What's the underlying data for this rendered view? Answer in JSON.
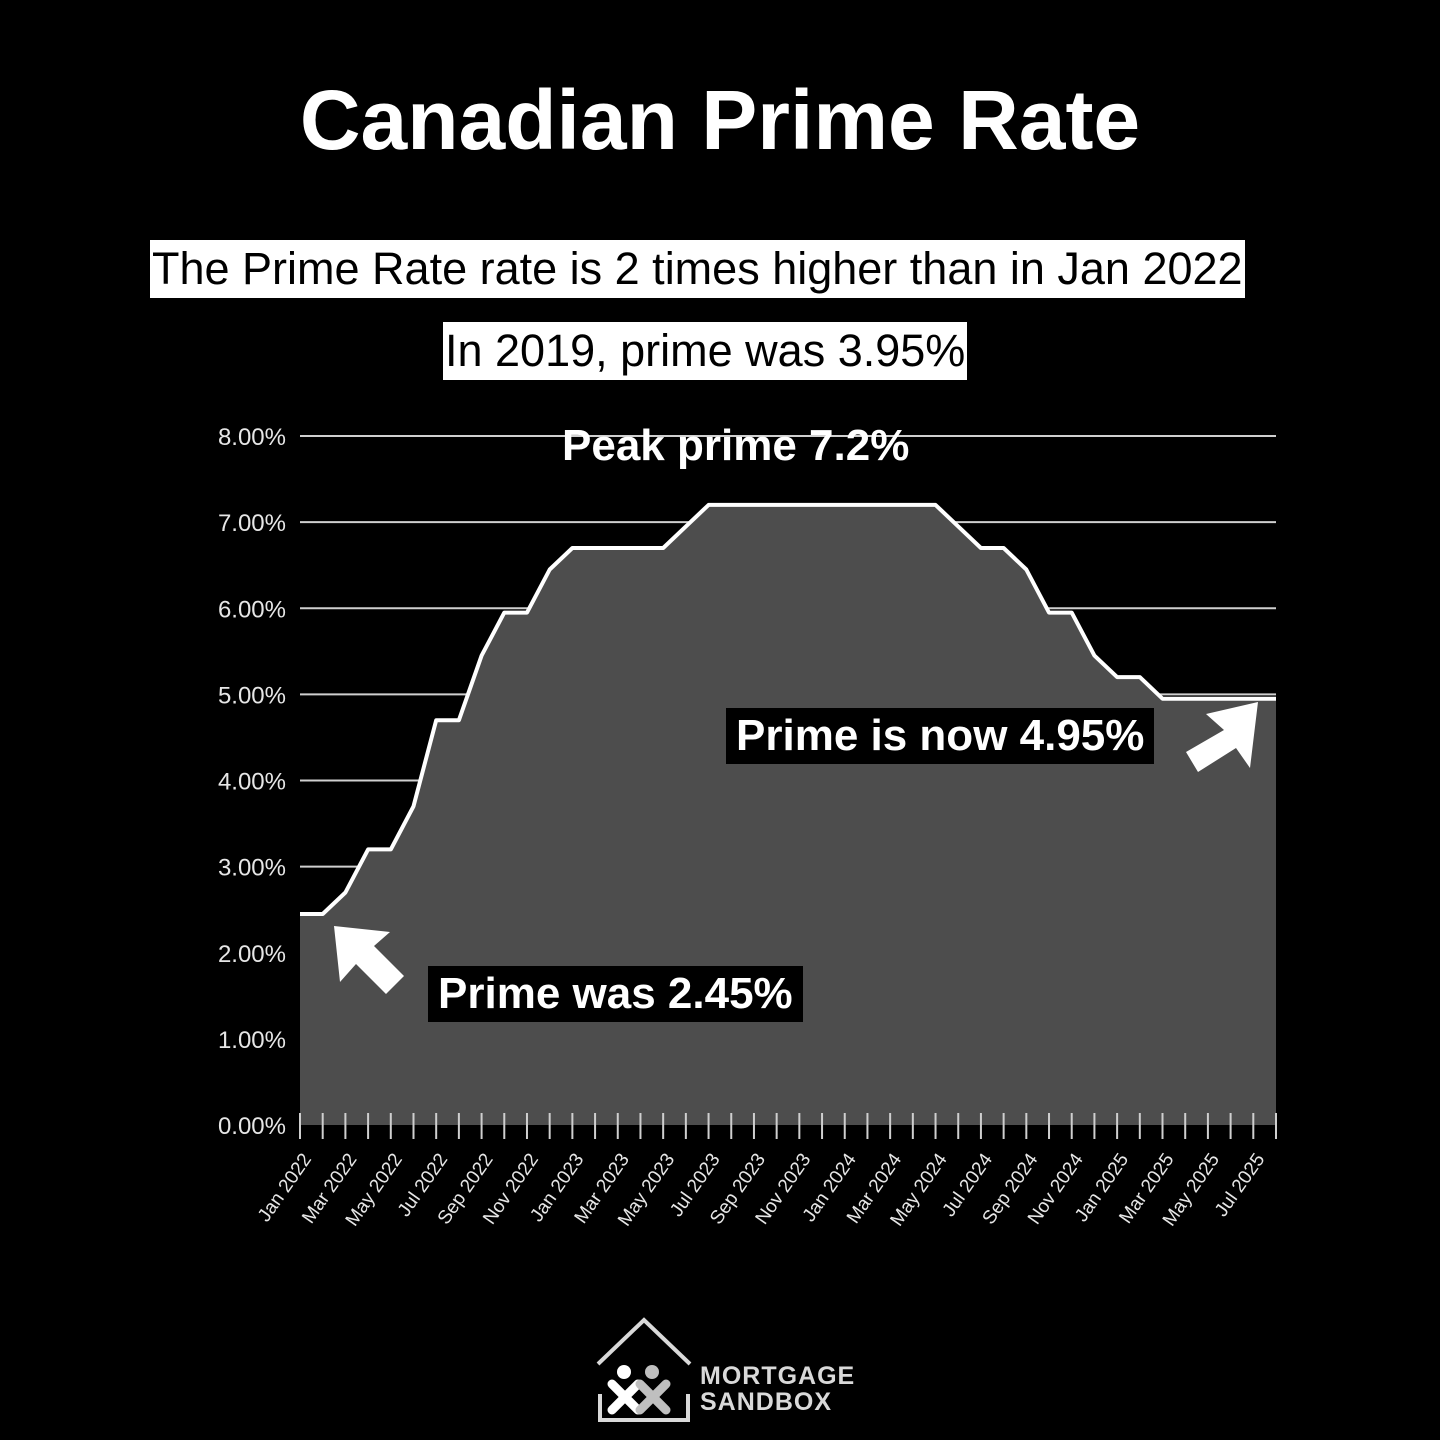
{
  "title": "Canadian Prime Rate",
  "subtitles": {
    "line1": "The Prime Rate rate is 2 times higher than in Jan 2022",
    "line2": "In 2019, prime was 3.95%"
  },
  "annotations": {
    "peak": "Peak prime 7.2%",
    "now": "Prime is now 4.95%",
    "was": "Prime was 2.45%"
  },
  "logo": {
    "line1": "MORTGAGE",
    "line2": "SANDBOX"
  },
  "colors": {
    "background": "#000000",
    "area_fill": "#4d4d4d",
    "line": "#ffffff",
    "grid": "#cfcfcf",
    "text": "#ffffff"
  },
  "chart_data": {
    "type": "area",
    "title": "Canadian Prime Rate",
    "xlabel": "",
    "ylabel": "",
    "ylim": [
      0,
      8
    ],
    "y_ticks": [
      "0.00%",
      "1.00%",
      "2.00%",
      "3.00%",
      "4.00%",
      "5.00%",
      "6.00%",
      "7.00%",
      "8.00%"
    ],
    "y_tick_values": [
      0,
      1,
      2,
      3,
      4,
      5,
      6,
      7,
      8
    ],
    "x_tick_labels": [
      "Jan 2022",
      "Mar 2022",
      "May 2022",
      "Jul 2022",
      "Sep 2022",
      "Nov 2022",
      "Jan 2023",
      "Mar 2023",
      "May 2023",
      "Jul 2023",
      "Sep 2023",
      "Nov 2023",
      "Jan 2024",
      "Mar 2024",
      "May 2024",
      "Jul 2024",
      "Sep 2024",
      "Nov 2024",
      "Jan 2025",
      "Mar 2025",
      "May 2025",
      "Jul 2025"
    ],
    "grid": true,
    "legend": "none",
    "x": [
      "Jan 2022",
      "Feb 2022",
      "Mar 2022",
      "Apr 2022",
      "May 2022",
      "Jun 2022",
      "Jul 2022",
      "Aug 2022",
      "Sep 2022",
      "Oct 2022",
      "Nov 2022",
      "Dec 2022",
      "Jan 2023",
      "Feb 2023",
      "Mar 2023",
      "Apr 2023",
      "May 2023",
      "Jun 2023",
      "Jul 2023",
      "Aug 2023",
      "Sep 2023",
      "Oct 2023",
      "Nov 2023",
      "Dec 2023",
      "Jan 2024",
      "Feb 2024",
      "Mar 2024",
      "Apr 2024",
      "May 2024",
      "Jun 2024",
      "Jul 2024",
      "Aug 2024",
      "Sep 2024",
      "Oct 2024",
      "Nov 2024",
      "Dec 2024",
      "Jan 2025",
      "Feb 2025",
      "Mar 2025",
      "Apr 2025",
      "May 2025",
      "Jun 2025",
      "Jul 2025",
      "Aug 2025"
    ],
    "series": [
      {
        "values": [
          2.45,
          2.45,
          2.7,
          3.2,
          3.2,
          3.7,
          4.7,
          4.7,
          5.45,
          5.95,
          5.95,
          6.45,
          6.7,
          6.7,
          6.7,
          6.7,
          6.7,
          6.95,
          7.2,
          7.2,
          7.2,
          7.2,
          7.2,
          7.2,
          7.2,
          7.2,
          7.2,
          7.2,
          7.2,
          6.95,
          6.7,
          6.7,
          6.45,
          5.95,
          5.95,
          5.45,
          5.2,
          5.2,
          4.95,
          4.95,
          4.95,
          4.95,
          4.95,
          4.95
        ]
      }
    ]
  }
}
